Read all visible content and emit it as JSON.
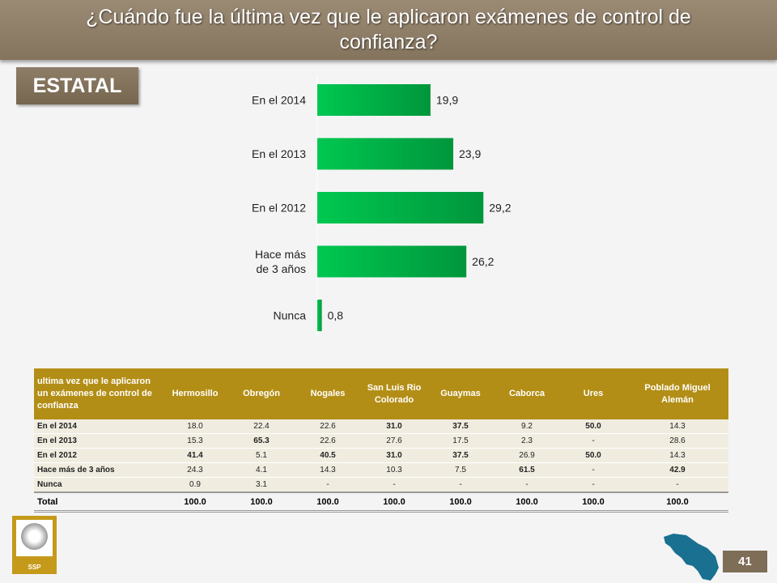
{
  "title": "¿Cuándo fue la última vez que le aplicaron exámenes de control de confianza?",
  "badge": "ESTATAL",
  "chart_data": {
    "type": "bar",
    "orientation": "horizontal",
    "categories": [
      "En el 2014",
      "En el 2013",
      "En el 2012",
      "Hace más de 3 años",
      "Nunca"
    ],
    "values": [
      19.9,
      23.9,
      29.2,
      26.2,
      0.8
    ],
    "value_labels": [
      "19,9",
      "23,9",
      "29,2",
      "26,2",
      "0,8"
    ],
    "category_lines": [
      [
        "En el 2014"
      ],
      [
        "En el 2013"
      ],
      [
        "En el 2012"
      ],
      [
        "Hace más",
        "de 3 años"
      ],
      [
        "Nunca"
      ]
    ],
    "title": "",
    "xlabel": "",
    "ylabel": "",
    "bar_color_start": "#00c850",
    "bar_color_end": "#00963c",
    "grid": false,
    "legend": "none"
  },
  "table": {
    "headers": [
      "ultima vez que le aplicaron un exámenes de control de confianza",
      "Hermosillo",
      "Obregón",
      "Nogales",
      "San Luis Rio Colorado",
      "Guaymas",
      "Caborca",
      "Ures",
      "Poblado Miguel Alemán"
    ],
    "rows": [
      {
        "label": "En el 2014",
        "cells": [
          "18.0",
          "22.4",
          "22.6",
          "31.0",
          "37.5",
          "9.2",
          "50.0",
          "14.3"
        ],
        "bold": [
          false,
          false,
          false,
          true,
          true,
          false,
          true,
          false
        ]
      },
      {
        "label": "En el 2013",
        "cells": [
          "15.3",
          "65.3",
          "22.6",
          "27.6",
          "17.5",
          "2.3",
          "-",
          "28.6"
        ],
        "bold": [
          false,
          true,
          false,
          false,
          false,
          false,
          false,
          false
        ]
      },
      {
        "label": "En el 2012",
        "cells": [
          "41.4",
          "5.1",
          "40.5",
          "31.0",
          "37.5",
          "26.9",
          "50.0",
          "14.3"
        ],
        "bold": [
          true,
          false,
          true,
          true,
          true,
          false,
          true,
          false
        ]
      },
      {
        "label": "Hace más de 3 años",
        "cells": [
          "24.3",
          "4.1",
          "14.3",
          "10.3",
          "7.5",
          "61.5",
          "-",
          "42.9"
        ],
        "bold": [
          false,
          false,
          false,
          false,
          false,
          true,
          false,
          true
        ]
      },
      {
        "label": "Nunca",
        "cells": [
          "0.9",
          "3.1",
          "-",
          "-",
          "-",
          "-",
          "-",
          "-"
        ],
        "bold": [
          false,
          false,
          false,
          false,
          false,
          false,
          false,
          false
        ]
      }
    ],
    "total": {
      "label": "Total",
      "cells": [
        "100.0",
        "100.0",
        "100.0",
        "100.0",
        "100.0",
        "100.0",
        "100.0",
        "100.0"
      ]
    },
    "header_color": "#b38e16",
    "row_color": "#f0ede0"
  },
  "logo": {
    "text": "SSP",
    "icon": "seal-icon"
  },
  "map_icon": "sonora-map-icon",
  "map_color": "#1a7090",
  "page_number": "41"
}
